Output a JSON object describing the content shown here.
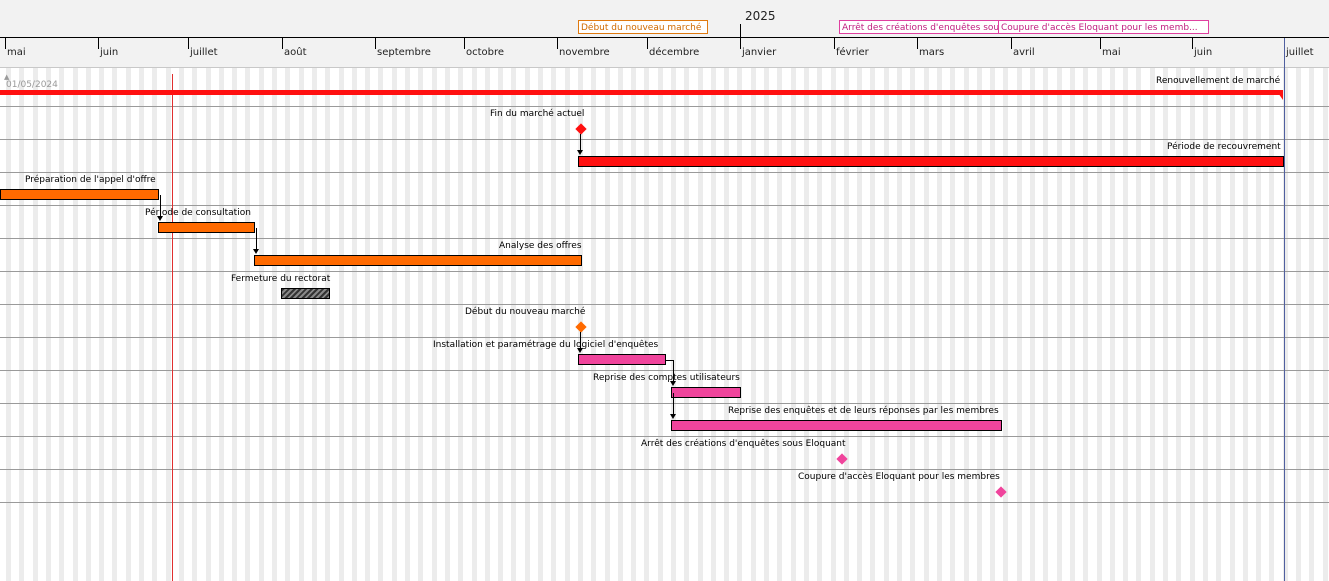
{
  "header": {
    "year_label": "2025",
    "months": [
      "mai",
      "juin",
      "juillet",
      "août",
      "septembre",
      "octobre",
      "novembre",
      "décembre",
      "janvier",
      "février",
      "mars",
      "avril",
      "mai",
      "juin",
      "juillet"
    ],
    "markers": [
      {
        "label": "Début du nouveau marché",
        "color": "orange"
      },
      {
        "label": "Arrêt des créations d'enquêtes sous",
        "color": "pink"
      },
      {
        "label": "Coupure d'accès Eloquant pour les memb...",
        "color": "pink"
      }
    ]
  },
  "timeline": {
    "start_date_label": "01/05/2024"
  },
  "tasks": [
    {
      "label": "Renouvellement de marché",
      "kind": "summary"
    },
    {
      "label": "Fin du marché actuel",
      "kind": "milestone",
      "color": "red"
    },
    {
      "label": "Période de recouvrement",
      "kind": "bar",
      "color": "red"
    },
    {
      "label": "Préparation de l'appel d'offre",
      "kind": "bar",
      "color": "orange"
    },
    {
      "label": "Période de consultation",
      "kind": "bar",
      "color": "orange"
    },
    {
      "label": "Analyse des offres",
      "kind": "bar",
      "color": "orange"
    },
    {
      "label": "Fermeture du rectorat",
      "kind": "bar",
      "color": "hatch"
    },
    {
      "label": "Début du nouveau marché",
      "kind": "milestone",
      "color": "orange"
    },
    {
      "label": "Installation et paramétrage du logiciel d'enquêtes",
      "kind": "bar",
      "color": "pink"
    },
    {
      "label": "Reprise des comptes utilisateurs",
      "kind": "bar",
      "color": "pink"
    },
    {
      "label": "Reprise des enquêtes et de leurs réponses par les membres",
      "kind": "bar",
      "color": "pink"
    },
    {
      "label": "Arrêt des créations d'enquêtes sous Eloquant",
      "kind": "milestone",
      "color": "pink"
    },
    {
      "label": "Coupure d'accès Eloquant pour les membres",
      "kind": "milestone",
      "color": "pink"
    }
  ],
  "colors": {
    "red": "#ff1010",
    "orange": "#ff6a00",
    "pink": "#f0449c",
    "today_line": "#e03030"
  }
}
